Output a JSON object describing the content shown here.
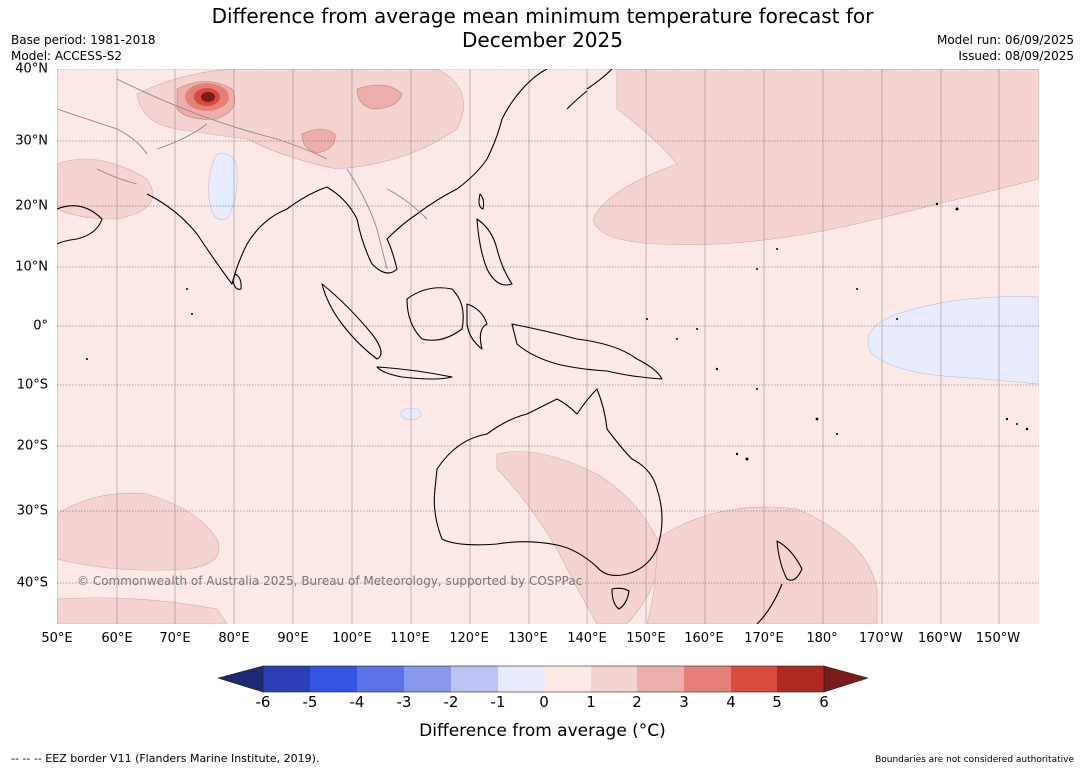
{
  "title": {
    "line1": "Difference from average mean minimum temperature forecast for",
    "line2": "December 2025"
  },
  "meta_left": {
    "base_period": "Base period: 1981-2018",
    "model": "Model: ACCESS-S2"
  },
  "meta_right": {
    "model_run": "Model run: 06/09/2025",
    "issued": "Issued: 08/09/2025"
  },
  "map": {
    "lat_labels": [
      "40°N",
      "30°N",
      "20°N",
      "10°N",
      "0°",
      "10°S",
      "20°S",
      "30°S",
      "40°S"
    ],
    "lon_labels": [
      "50°E",
      "60°E",
      "70°E",
      "80°E",
      "90°E",
      "100°E",
      "110°E",
      "120°E",
      "130°E",
      "140°E",
      "150°E",
      "160°E",
      "170°E",
      "180°",
      "170°W",
      "160°W",
      "150°W"
    ],
    "copyright": "© Commonwealth of Australia 2025, Bureau of Meteorology, supported by COSPPac",
    "background_color": "#fbe9e7"
  },
  "colorbar": {
    "ticks": [
      "-6",
      "-5",
      "-4",
      "-3",
      "-2",
      "-1",
      "0",
      "1",
      "2",
      "3",
      "4",
      "5",
      "6"
    ],
    "colors": [
      "#1c2a78",
      "#2a3fb5",
      "#3455df",
      "#5c73e6",
      "#8898ec",
      "#bcc4f3",
      "#e8ebfb",
      "#fbe9e7",
      "#f4d3d0",
      "#ecaeaa",
      "#e58079",
      "#d94a3f",
      "#ac2a23",
      "#7a1c17"
    ],
    "label": "Difference from average (°C)"
  },
  "footer": {
    "eez_note": "--  --  -- EEZ border V11 (Flanders Marine Institute, 2019).",
    "boundaries_note": "Boundaries are not considered authoritative"
  }
}
